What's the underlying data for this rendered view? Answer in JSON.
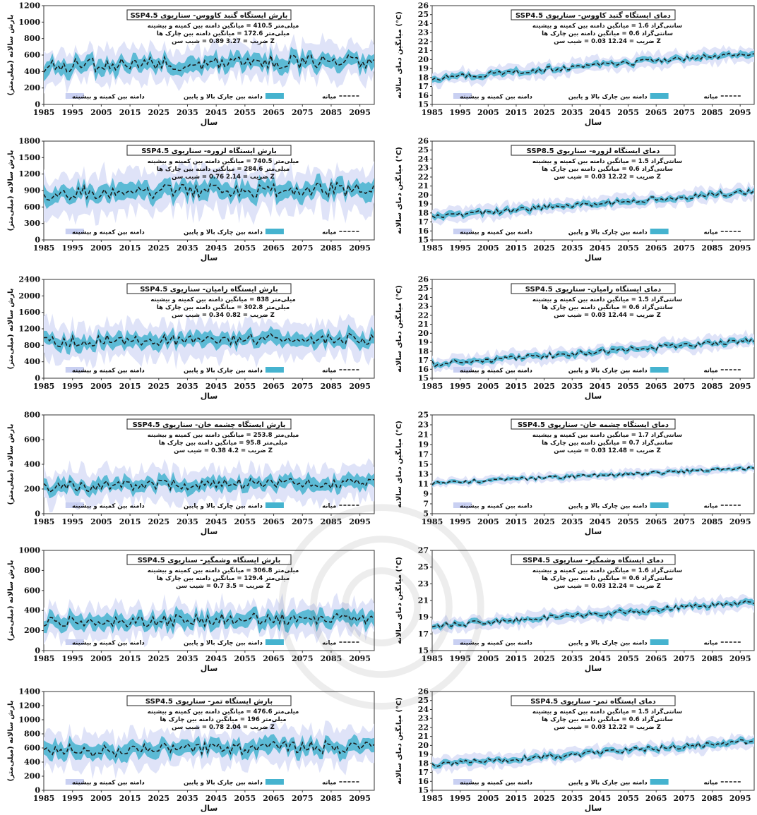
{
  "common": {
    "x_label": "سال",
    "x_ticks": [
      1985,
      1995,
      2005,
      2015,
      2025,
      2035,
      2045,
      2055,
      2065,
      2075,
      2085,
      2095
    ],
    "xlim": [
      1985,
      2100
    ],
    "precip_ylabel": "بارش سالانه (میلی‌متر)",
    "temp_ylabel": "میانگین دمای سالانه (°C)",
    "legend": {
      "median": "میانه",
      "iqr": "دامنه بین چارک بالا و پایین",
      "range": "دامنه بین کمینه و بیشینه"
    },
    "colors": {
      "range_fill": "#dfe3f8",
      "iqr_fill": "#45b3cf",
      "median_line": "#1a1a1a"
    }
  },
  "chart_data": [
    {
      "type": "area",
      "variable": "precipitation",
      "title": "بارش ایستگاه گنبد کاووس- سناریوی SSP4.5",
      "stats": [
        "میلی‌متر 410.5 = میانگین دامنه بین کمینه و بیشینه",
        "میلی‌متر 172.6 = میانگین دامنه بین چارک ها",
        "Z ضریب = 3.27 0.89 = شیب سن"
      ],
      "ylim": [
        0,
        1200
      ],
      "y_ticks": [
        0,
        200,
        400,
        600,
        800,
        1000,
        1200
      ],
      "median_start": 470,
      "median_end": 530,
      "iqr_half": 86,
      "range_half": 205,
      "amplitude": 85
    },
    {
      "type": "area",
      "variable": "temperature",
      "title": "دمای ایستگاه گنبد کاووس- سناریوی SSP4.5",
      "stats": [
        "سانتی‌گراد 1.6 = میانگین دامنه بین کمینه و بیشینه",
        "سانتی‌گراد 0.6 = میانگین دامنه بین چارک ها",
        "Z ضریب = 12.24 0.03 = شیب سن"
      ],
      "ylim": [
        15,
        26
      ],
      "y_ticks": [
        15,
        16,
        17,
        18,
        19,
        20,
        21,
        22,
        23,
        24,
        25,
        26
      ],
      "median_start": 17.9,
      "median_end": 20.7,
      "iqr_half": 0.3,
      "range_half": 0.8,
      "amplitude": 0.3
    },
    {
      "type": "area",
      "variable": "precipitation",
      "title": "بارش ایستگاه لزوره- سناریوی SSP4.5",
      "stats": [
        "میلی‌متر 740.5 = میانگین دامنه بین کمینه و بیشینه",
        "میلی‌متر 284.6 = میانگین دامنه بین چارک ها",
        "Z ضریب = 2.14 0.76 = شیب سن"
      ],
      "ylim": [
        0,
        1800
      ],
      "y_ticks": [
        0,
        300,
        600,
        900,
        1200,
        1500,
        1800
      ],
      "median_start": 850,
      "median_end": 930,
      "iqr_half": 142,
      "range_half": 370,
      "amplitude": 130
    },
    {
      "type": "area",
      "variable": "temperature",
      "title": "دمای ایستگاه لزوره- سناریوی SSP8.5",
      "stats": [
        "سانتی‌گراد 1.5 = میانگین دامنه بین کمینه و بیشینه",
        "سانتی‌گراد 0.6 = میانگین دامنه بین چارک ها",
        "Z ضریب = 12.22 0.03 = شیب سن"
      ],
      "ylim": [
        15,
        26
      ],
      "y_ticks": [
        15,
        16,
        17,
        18,
        19,
        20,
        21,
        22,
        23,
        24,
        25,
        26
      ],
      "median_start": 17.6,
      "median_end": 20.4,
      "iqr_half": 0.3,
      "range_half": 0.75,
      "amplitude": 0.3
    },
    {
      "type": "area",
      "variable": "precipitation",
      "title": "بارش ایستگاه رامیان- سناریوی SSP4.5",
      "stats": [
        "میلی‌متر 838 = میانگین دامنه بین کمینه و بیشینه",
        "میلی‌متر 302.8 = میانگین دامنه بین چارک ها",
        "Z ضریب = 0.82 0.34 = شیب سن"
      ],
      "ylim": [
        0,
        2400
      ],
      "y_ticks": [
        0,
        400,
        800,
        1200,
        1600,
        2000,
        2400
      ],
      "median_start": 900,
      "median_end": 960,
      "iqr_half": 151,
      "range_half": 419,
      "amplitude": 140
    },
    {
      "type": "area",
      "variable": "temperature",
      "title": "دمای ایستگاه رامیان- سناریوی SSP4.5",
      "stats": [
        "سانتی‌گراد 1.5 = میانگین دامنه بین کمینه و بیشینه",
        "سانتی‌گراد 0.6 = میانگین دامنه بین چارک ها",
        "Z ضریب = 12.44 0.03 = شیب سن"
      ],
      "ylim": [
        15,
        26
      ],
      "y_ticks": [
        15,
        16,
        17,
        18,
        19,
        20,
        21,
        22,
        23,
        24,
        25,
        26
      ],
      "median_start": 16.6,
      "median_end": 19.2,
      "iqr_half": 0.3,
      "range_half": 0.75,
      "amplitude": 0.3
    },
    {
      "type": "area",
      "variable": "precipitation",
      "title": "بارش ایستگاه چشمه خان- سناریوی SSP4.5",
      "stats": [
        "میلی‌متر 253.8 = میانگین دامنه بین کمینه و بیشینه",
        "میلی‌متر 95.8 = میانگین دامنه بین چارک ها",
        "Z ضریب = 4.2 0.38 = شیب سن"
      ],
      "ylim": [
        0,
        800
      ],
      "y_ticks": [
        0,
        200,
        400,
        600,
        800
      ],
      "median_start": 215,
      "median_end": 255,
      "iqr_half": 48,
      "range_half": 127,
      "amplitude": 45
    },
    {
      "type": "area",
      "variable": "temperature",
      "title": "دمای ایستگاه چشمه خان- سناریوی SSP4.5",
      "stats": [
        "سانتی‌گراد 1.7 = میانگین دامنه بین کمینه و بیشینه",
        "سانتی‌گراد 0.7 = میانگین دامنه بین چارک ها",
        "Z ضریب = 12.48 0.03 = شیب سن"
      ],
      "ylim": [
        5,
        25
      ],
      "y_ticks": [
        5,
        7,
        9,
        11,
        13,
        15,
        17,
        19,
        21,
        23,
        25
      ],
      "median_start": 11.2,
      "median_end": 14.2,
      "iqr_half": 0.35,
      "range_half": 0.85,
      "amplitude": 0.35
    },
    {
      "type": "area",
      "variable": "precipitation",
      "title": "بارش ایستگاه وشمگیر- سناریوی SSP4.5",
      "stats": [
        "میلی‌متر 306.8 = میانگین دامنه بین کمینه و بیشینه",
        "میلی‌متر 129.4 = میانگین دامنه بین چارک ها",
        "Z ضریب = 3.5 0.7 = شیب سن"
      ],
      "ylim": [
        0,
        1000
      ],
      "y_ticks": [
        0,
        200,
        400,
        600,
        800,
        1000
      ],
      "median_start": 280,
      "median_end": 330,
      "iqr_half": 65,
      "range_half": 153,
      "amplitude": 60
    },
    {
      "type": "area",
      "variable": "temperature",
      "title": "دمای ایستگاه وشمگیر- سناریوی SSP4.5",
      "stats": [
        "سانتی‌گراد 1.6 = میانگین دامنه بین کمینه و بیشینه",
        "سانتی‌گراد 0.6 = میانگین دامنه بین چارک ها",
        "Z ضریب = 12.24 0.03 = شیب سن"
      ],
      "ylim": [
        15,
        27
      ],
      "y_ticks": [
        15,
        17,
        19,
        21,
        23,
        25,
        27
      ],
      "median_start": 17.9,
      "median_end": 20.8,
      "iqr_half": 0.3,
      "range_half": 0.8,
      "amplitude": 0.3
    },
    {
      "type": "area",
      "variable": "precipitation",
      "title": "بارش ایستگاه تمر- سناریوی SSP4.5",
      "stats": [
        "میلی‌متر 476.6 = میانگین دامنه بین کمینه و بیشینه",
        "میلی‌متر 196 = میانگین دامنه بین چارک ها",
        "Z ضریب = 2.04 0.78 = شیب سن"
      ],
      "ylim": [
        0,
        1400
      ],
      "y_ticks": [
        0,
        200,
        400,
        600,
        800,
        1000,
        1200,
        1400
      ],
      "median_start": 560,
      "median_end": 620,
      "iqr_half": 98,
      "range_half": 238,
      "amplitude": 95
    },
    {
      "type": "area",
      "variable": "temperature",
      "title": "دمای ایستگاه تمر- سناریوی SSP4.5",
      "stats": [
        "سانتی‌گراد 1.5 = میانگین دامنه بین کمینه و بیشینه",
        "سانتی‌گراد 0.6 = میانگین دامنه بین چارک ها",
        "Z ضریب = 12.22 0.03 = شیب سن"
      ],
      "ylim": [
        15,
        26
      ],
      "y_ticks": [
        15,
        16,
        17,
        18,
        19,
        20,
        21,
        22,
        23,
        24,
        25,
        26
      ],
      "median_start": 17.8,
      "median_end": 20.5,
      "iqr_half": 0.3,
      "range_half": 0.75,
      "amplitude": 0.3
    }
  ]
}
